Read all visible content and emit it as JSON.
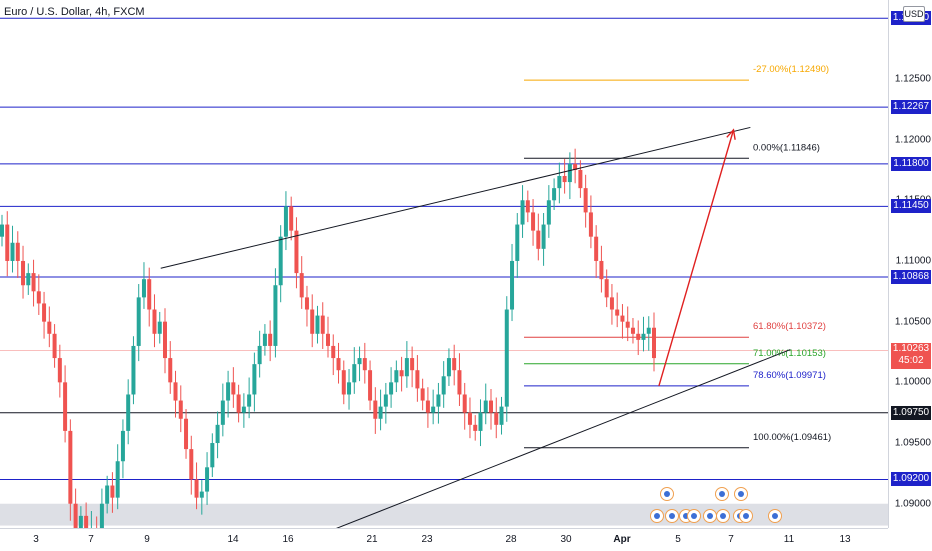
{
  "chart_title": "Euro / U.S. Dollar, 4h, FXCM",
  "currency": "USD",
  "price_ticks": [
    "1.12500",
    "1.12000",
    "1.11500",
    "1.11000",
    "1.10500",
    "1.10000",
    "1.09500",
    "1.09000"
  ],
  "level_badges": [
    {
      "label": "1.13000",
      "price": 1.13,
      "color": "#1e22c9"
    },
    {
      "label": "1.12267",
      "price": 1.12267,
      "color": "#1e22c9"
    },
    {
      "label": "1.11800",
      "price": 1.118,
      "color": "#1e22c9"
    },
    {
      "label": "1.11450",
      "price": 1.1145,
      "color": "#1e22c9"
    },
    {
      "label": "1.10868",
      "price": 1.10868,
      "color": "#1e22c9"
    },
    {
      "label": "1.09750",
      "price": 1.0975,
      "color": "#131722"
    },
    {
      "label": "1.09200",
      "price": 1.092,
      "color": "#1e22c9"
    }
  ],
  "current_price": {
    "label": "1.10263",
    "countdown": "45:02",
    "price": 1.10263,
    "color": "#ef5350"
  },
  "time_labels": [
    "3",
    "7",
    "9",
    "14",
    "16",
    "21",
    "23",
    "28",
    "30",
    "Apr",
    "5",
    "7",
    "11",
    "13"
  ],
  "fib_levels": [
    {
      "label": "-27.00%(1.12490)",
      "price": 1.1249,
      "color": "#f7a800"
    },
    {
      "label": "0.00%(1.11846)",
      "price": 1.11846,
      "color": "#131722"
    },
    {
      "label": "61.80%(1.10372)",
      "price": 1.10372,
      "color": "#e04040"
    },
    {
      "label": "71.00%(1.10153)",
      "price": 1.10153,
      "color": "#2aa52a"
    },
    {
      "label": "78.60%(1.09971)",
      "price": 1.09971,
      "color": "#1e22c9"
    },
    {
      "label": "100.00%(1.09461)",
      "price": 1.09461,
      "color": "#131722"
    }
  ],
  "chart_data": {
    "type": "candlestick",
    "symbol": "EURUSD",
    "timeframe": "4h",
    "ylim": [
      1.088,
      1.1315
    ],
    "horizontal_levels": [
      1.13,
      1.12267,
      1.118,
      1.1145,
      1.10868,
      1.0975,
      1.092
    ],
    "support_zone": [
      1.0882,
      1.09
    ],
    "last_price": 1.10263,
    "trendlines": [
      {
        "name": "upper",
        "from": {
          "x": 0.181,
          "y": 1.1094
        },
        "to": {
          "x": 0.845,
          "y": 1.121
        }
      },
      {
        "name": "lower",
        "from": {
          "x": 0.373,
          "y": 1.0878
        },
        "to": {
          "x": 0.89,
          "y": 1.1027
        }
      }
    ],
    "projection_arrow": {
      "from": {
        "x": 0.742,
        "y": 1.0997
      },
      "to": {
        "x": 0.826,
        "y": 1.1208
      }
    },
    "closes": [
      1.113,
      1.11,
      1.1115,
      1.11,
      1.108,
      1.109,
      1.1075,
      1.1065,
      1.105,
      1.104,
      1.102,
      1.1,
      1.096,
      1.09,
      1.088,
      1.089,
      1.0875,
      1.088,
      1.087,
      1.09,
      1.0915,
      1.0905,
      1.0935,
      1.096,
      1.099,
      1.103,
      1.107,
      1.1085,
      1.106,
      1.104,
      1.105,
      1.102,
      1.1,
      1.0985,
      1.097,
      1.0945,
      1.092,
      1.0905,
      1.091,
      1.093,
      1.095,
      1.0965,
      1.0985,
      1.1,
      1.099,
      1.0975,
      1.098,
      1.099,
      1.1015,
      1.103,
      1.104,
      1.103,
      1.108,
      1.112,
      1.1145,
      1.1125,
      1.109,
      1.107,
      1.106,
      1.104,
      1.1055,
      1.104,
      1.103,
      1.102,
      1.101,
      1.099,
      1.1,
      1.1015,
      1.102,
      1.101,
      1.0985,
      1.097,
      1.098,
      1.099,
      1.1,
      1.101,
      1.1005,
      1.102,
      1.101,
      1.0995,
      1.0985,
      1.0975,
      1.098,
      1.099,
      1.1005,
      1.102,
      1.101,
      1.099,
      1.0975,
      1.0965,
      1.096,
      1.0975,
      1.0985,
      1.0975,
      1.0965,
      1.098,
      1.106,
      1.11,
      1.113,
      1.115,
      1.114,
      1.1125,
      1.111,
      1.113,
      1.115,
      1.116,
      1.117,
      1.1165,
      1.118,
      1.1175,
      1.116,
      1.114,
      1.112,
      1.11,
      1.1085,
      1.107,
      1.106,
      1.1055,
      1.105,
      1.1045,
      1.104,
      1.1035,
      1.104,
      1.1045,
      1.102
    ]
  }
}
